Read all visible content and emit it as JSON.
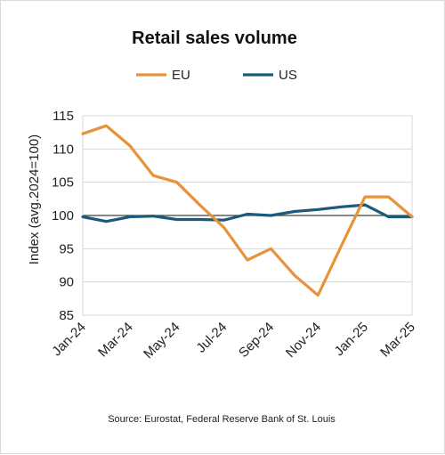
{
  "chart_data": {
    "type": "line",
    "title": "Retail sales volume",
    "ylabel": "Index (avg.2024=100)",
    "xlabel": "",
    "ylim": [
      85,
      115
    ],
    "y_ticks": [
      85,
      90,
      95,
      100,
      105,
      110,
      115
    ],
    "x": [
      "Jan-24",
      "Feb-24",
      "Mar-24",
      "Apr-24",
      "May-24",
      "Jun-24",
      "Jul-24",
      "Aug-24",
      "Sep-24",
      "Oct-24",
      "Nov-24",
      "Dec-24",
      "Jan-25",
      "Feb-25",
      "Mar-25"
    ],
    "x_tick_labels": [
      "Jan-24",
      "Mar-24",
      "May-24",
      "Jul-24",
      "Sep-24",
      "Nov-24",
      "Jan-25",
      "Mar-25"
    ],
    "reference_line": 100,
    "grid": true,
    "legend_position": "top",
    "series": [
      {
        "name": "EU",
        "color": "#E8923A",
        "values": [
          112.3,
          113.5,
          110.5,
          106.0,
          105.0,
          101.5,
          98.2,
          93.3,
          95.0,
          91.0,
          88.0,
          95.5,
          102.8,
          102.8,
          99.8
        ]
      },
      {
        "name": "US",
        "color": "#1B5A7A",
        "values": [
          99.8,
          99.1,
          99.8,
          99.9,
          99.4,
          99.4,
          99.3,
          100.2,
          100.0,
          100.6,
          100.9,
          101.3,
          101.6,
          99.8,
          99.8
        ]
      }
    ],
    "source": "Source: Eurostat, Federal Reserve Bank of St. Louis"
  }
}
